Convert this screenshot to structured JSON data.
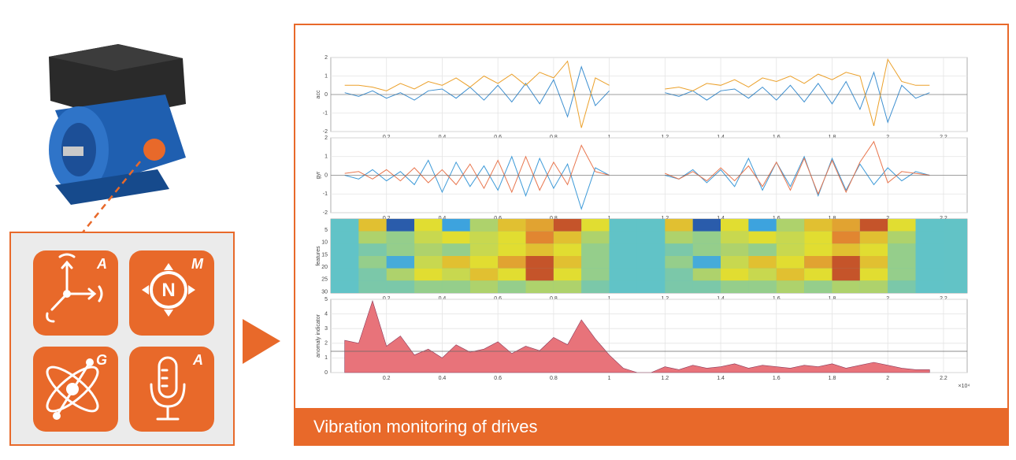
{
  "chart_data": [
    {
      "type": "line",
      "ylabel": "acc",
      "ylim": [
        -2,
        2
      ],
      "yticks": [
        -2,
        -1,
        0,
        1,
        2
      ],
      "xlim": [
        0,
        2.285
      ],
      "xticks": [
        0.2,
        0.4,
        0.6,
        0.8,
        1,
        1.2,
        1.4,
        1.6,
        1.8,
        2,
        2.2
      ],
      "grid": true,
      "x": [
        0.05,
        0.1,
        0.15,
        0.2,
        0.25,
        0.3,
        0.35,
        0.4,
        0.45,
        0.5,
        0.55,
        0.6,
        0.65,
        0.7,
        0.75,
        0.8,
        0.85,
        0.9,
        0.95,
        1.0,
        1.05,
        1.1,
        1.15,
        1.2,
        1.25,
        1.3,
        1.35,
        1.4,
        1.45,
        1.5,
        1.55,
        1.6,
        1.65,
        1.7,
        1.75,
        1.8,
        1.85,
        1.9,
        1.95,
        2.0,
        2.05,
        2.1,
        2.15
      ],
      "series": [
        {
          "color": "#3d8fd0",
          "values": [
            0.1,
            -0.1,
            0.2,
            -0.2,
            0.1,
            -0.3,
            0.2,
            0.3,
            -0.2,
            0.4,
            -0.3,
            0.5,
            -0.4,
            0.6,
            -0.5,
            0.8,
            -1.2,
            1.5,
            -0.6,
            0.2,
            null,
            null,
            null,
            0.1,
            -0.1,
            0.2,
            -0.3,
            0.2,
            0.3,
            -0.2,
            0.4,
            -0.3,
            0.5,
            -0.4,
            0.6,
            -0.5,
            0.7,
            -0.8,
            1.2,
            -1.5,
            0.5,
            -0.2,
            0.1
          ]
        },
        {
          "color": "#eba02a",
          "values": [
            0.5,
            0.5,
            0.4,
            0.2,
            0.6,
            0.3,
            0.7,
            0.5,
            0.9,
            0.4,
            1.0,
            0.6,
            1.1,
            0.5,
            1.2,
            0.9,
            1.8,
            -1.8,
            0.9,
            0.5,
            null,
            null,
            null,
            0.3,
            0.4,
            0.2,
            0.6,
            0.5,
            0.8,
            0.4,
            0.9,
            0.7,
            1.0,
            0.6,
            1.1,
            0.8,
            1.2,
            1.0,
            -1.7,
            1.9,
            0.7,
            0.5,
            0.5
          ]
        }
      ]
    },
    {
      "type": "line",
      "ylabel": "gyr",
      "ylim": [
        -2,
        2
      ],
      "yticks": [
        -2,
        -1,
        0,
        1,
        2
      ],
      "xlim": [
        0,
        2.285
      ],
      "xticks": [
        0.2,
        0.4,
        0.6,
        0.8,
        1,
        1.2,
        1.4,
        1.6,
        1.8,
        2,
        2.2
      ],
      "grid": true,
      "x": [
        0.05,
        0.1,
        0.15,
        0.2,
        0.25,
        0.3,
        0.35,
        0.4,
        0.45,
        0.5,
        0.55,
        0.6,
        0.65,
        0.7,
        0.75,
        0.8,
        0.85,
        0.9,
        0.95,
        1.0,
        1.05,
        1.1,
        1.15,
        1.2,
        1.25,
        1.3,
        1.35,
        1.4,
        1.45,
        1.5,
        1.55,
        1.6,
        1.65,
        1.7,
        1.75,
        1.8,
        1.85,
        1.9,
        1.95,
        2.0,
        2.05,
        2.1,
        2.15
      ],
      "series": [
        {
          "color": "#3d9ad8",
          "values": [
            0,
            -0.2,
            0.3,
            -0.3,
            0.2,
            -0.5,
            0.8,
            -0.9,
            0.7,
            -0.6,
            0.5,
            -0.8,
            1.0,
            -1.1,
            0.9,
            -0.7,
            0.6,
            -1.8,
            0.4,
            0,
            null,
            null,
            null,
            0,
            -0.2,
            0.3,
            -0.4,
            0.3,
            -0.6,
            0.9,
            -0.8,
            0.7,
            -0.6,
            1.0,
            -1.1,
            0.9,
            -0.8,
            0.6,
            -0.5,
            0.4,
            -0.3,
            0.2,
            0
          ]
        },
        {
          "color": "#e8764e",
          "values": [
            0.1,
            0.2,
            -0.2,
            0.3,
            -0.3,
            0.4,
            -0.4,
            0.3,
            -0.5,
            0.6,
            -0.7,
            0.8,
            -0.9,
            1.0,
            -0.8,
            0.7,
            -0.5,
            1.6,
            0.2,
            0,
            null,
            null,
            null,
            0.1,
            -0.2,
            0.2,
            -0.3,
            0.4,
            -0.3,
            0.5,
            -0.6,
            0.7,
            -0.8,
            0.9,
            -1.0,
            0.8,
            -0.9,
            0.7,
            1.8,
            -0.4,
            0.2,
            0.1,
            0
          ]
        }
      ]
    },
    {
      "type": "heatmap",
      "ylabel": "features",
      "ylim": [
        30.5,
        0.5
      ],
      "yticks": [
        5,
        10,
        15,
        20,
        25,
        30
      ],
      "xlim": [
        0,
        2.285
      ],
      "xticks": [
        0.2,
        0.4,
        0.6,
        0.8,
        1,
        1.2,
        1.4,
        1.6,
        1.8,
        2,
        2.2
      ],
      "matrix": [
        [
          0,
          0.6,
          -0.8,
          0.5,
          -0.4,
          0.3,
          0.6,
          0.7,
          0.9,
          0.5,
          0,
          0,
          0.6,
          -0.8,
          0.5,
          -0.4,
          0.3,
          0.6,
          0.7,
          0.9,
          0.5,
          0
        ],
        [
          0,
          0.3,
          0.2,
          0.4,
          0.5,
          0.4,
          0.5,
          0.8,
          0.6,
          0.3,
          0,
          0,
          0.3,
          0.2,
          0.4,
          0.5,
          0.4,
          0.5,
          0.8,
          0.6,
          0.3,
          0
        ],
        [
          0,
          0.1,
          0.2,
          0.3,
          0.2,
          0.4,
          0.5,
          0.6,
          0.5,
          0.2,
          0,
          0,
          0.1,
          0.2,
          0.3,
          0.2,
          0.4,
          0.5,
          0.6,
          0.5,
          0.2,
          0
        ],
        [
          0,
          0.2,
          -0.3,
          0.4,
          0.6,
          0.5,
          0.7,
          0.9,
          0.6,
          0.2,
          0,
          0,
          0.2,
          -0.3,
          0.4,
          0.6,
          0.5,
          0.7,
          0.9,
          0.6,
          0.2,
          0
        ],
        [
          0,
          0.1,
          0.3,
          0.5,
          0.4,
          0.6,
          0.5,
          0.9,
          0.5,
          0.2,
          0,
          0,
          0.1,
          0.3,
          0.5,
          0.4,
          0.6,
          0.5,
          0.9,
          0.5,
          0.2,
          0
        ],
        [
          0,
          0.1,
          0.1,
          0.2,
          0.2,
          0.3,
          0.2,
          0.3,
          0.3,
          0.1,
          0,
          0,
          0.1,
          0.1,
          0.2,
          0.2,
          0.3,
          0.2,
          0.3,
          0.3,
          0.1,
          0
        ]
      ]
    },
    {
      "type": "area",
      "ylabel": "anomaly indicator",
      "ylim": [
        0,
        5
      ],
      "yticks": [
        0,
        1,
        2,
        3,
        4,
        5
      ],
      "xlim": [
        0,
        2.285
      ],
      "xticks": [
        0.2,
        0.4,
        0.6,
        0.8,
        1,
        1.2,
        1.4,
        1.6,
        1.8,
        2,
        2.2
      ],
      "grid": true,
      "color": "#e8737a",
      "threshold": 1.45,
      "x_multiplier": "×10⁴",
      "x": [
        0.05,
        0.1,
        0.15,
        0.2,
        0.25,
        0.3,
        0.35,
        0.4,
        0.45,
        0.5,
        0.55,
        0.6,
        0.65,
        0.7,
        0.75,
        0.8,
        0.85,
        0.9,
        0.95,
        1.0,
        1.05,
        1.1,
        1.15,
        1.2,
        1.25,
        1.3,
        1.35,
        1.4,
        1.45,
        1.5,
        1.55,
        1.6,
        1.65,
        1.7,
        1.75,
        1.8,
        1.85,
        1.9,
        1.95,
        2.0,
        2.05,
        2.1,
        2.15
      ],
      "values": [
        2.2,
        2.0,
        4.9,
        1.8,
        2.5,
        1.2,
        1.6,
        1.0,
        1.9,
        1.4,
        1.6,
        2.1,
        1.3,
        1.8,
        1.5,
        2.4,
        1.9,
        3.6,
        2.3,
        1.2,
        0.3,
        0,
        0,
        0.4,
        0.2,
        0.5,
        0.3,
        0.4,
        0.6,
        0.3,
        0.5,
        0.4,
        0.3,
        0.5,
        0.4,
        0.6,
        0.3,
        0.5,
        0.7,
        0.5,
        0.3,
        0.2,
        0.2
      ]
    }
  ],
  "sensor_tiles": [
    {
      "letter": "A"
    },
    {
      "letter": "M"
    },
    {
      "letter": "G"
    },
    {
      "letter": "A"
    }
  ],
  "caption": "Vibration monitoring of drives"
}
